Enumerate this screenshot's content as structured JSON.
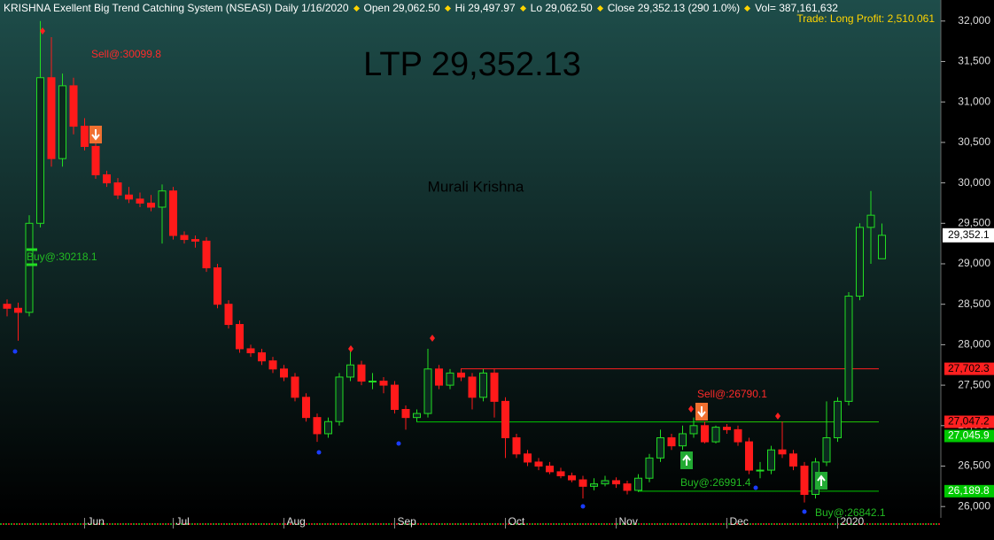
{
  "header": {
    "parts": [
      "KRISHNA Exellent Big Trend Catching System (NSEASI) Daily  1/16/2020",
      "Open 29,062.50",
      "Hi 29,497.97",
      "Lo 29,062.50",
      "Close 29,352.13 (290 1.0%)",
      "Vol= 387,161,632"
    ],
    "trade": "Trade: Long Profit: 2,510.061"
  },
  "watermark": {
    "ltp": "LTP 29,352.13",
    "author": "Murali Krishna"
  },
  "chart_data": {
    "type": "candlestick",
    "categories": [
      null,
      null,
      null,
      null,
      null,
      null,
      null,
      "Jun",
      null,
      null,
      null,
      null,
      null,
      null,
      null,
      "Jul",
      null,
      null,
      null,
      null,
      null,
      null,
      null,
      null,
      null,
      "Aug",
      null,
      null,
      null,
      null,
      null,
      null,
      null,
      null,
      null,
      "Sep",
      null,
      null,
      null,
      null,
      null,
      null,
      null,
      null,
      null,
      "Oct",
      null,
      null,
      null,
      null,
      null,
      null,
      null,
      null,
      null,
      "Nov",
      null,
      null,
      null,
      null,
      null,
      null,
      null,
      null,
      null,
      "Dec",
      null,
      null,
      null,
      null,
      null,
      null,
      null,
      null,
      null,
      "2020",
      null,
      null,
      null,
      null
    ],
    "open": [
      28500,
      28450,
      28400,
      29500,
      31300,
      30300,
      31200,
      30700,
      30450,
      30100,
      30000,
      29850,
      29800,
      29750,
      29700,
      29900,
      29350,
      29300,
      29280,
      28950,
      28500,
      28250,
      27950,
      27900,
      27800,
      27700,
      27600,
      27350,
      27100,
      26900,
      27050,
      27600,
      27750,
      27550,
      27550,
      27500,
      27200,
      27100,
      27150,
      27700,
      27500,
      27650,
      27600,
      27350,
      27650,
      27300,
      26850,
      26650,
      26550,
      26500,
      26430,
      26380,
      26330,
      26250,
      26280,
      26320,
      26280,
      26200,
      26350,
      26600,
      26850,
      26750,
      26900,
      27000,
      26800,
      26980,
      26950,
      26800,
      26450,
      26450,
      26700,
      26650,
      26500,
      26150,
      26550,
      26850,
      27300,
      28600,
      29450,
      29062.5
    ],
    "high": [
      28560,
      28520,
      29600,
      32000,
      31800,
      31350,
      31300,
      30800,
      30500,
      30150,
      30060,
      29950,
      29880,
      29850,
      29980,
      29950,
      29400,
      29350,
      29330,
      29000,
      28550,
      28300,
      28000,
      27950,
      27850,
      27750,
      27650,
      27400,
      27150,
      27100,
      27650,
      27950,
      27800,
      27650,
      27600,
      27550,
      27250,
      27200,
      27950,
      27750,
      27700,
      27700,
      27650,
      27700,
      27700,
      27350,
      26900,
      26700,
      26600,
      26550,
      26480,
      26420,
      26380,
      26350,
      26380,
      26360,
      26320,
      26400,
      26650,
      26950,
      26900,
      27000,
      27100,
      27050,
      27000,
      27020,
      27000,
      26850,
      26550,
      26750,
      27050,
      26700,
      26550,
      26600,
      27300,
      27350,
      28650,
      29500,
      29900,
      29497.97
    ],
    "low": [
      28350,
      28050,
      28350,
      29450,
      30200,
      30200,
      30600,
      30400,
      30050,
      29950,
      29800,
      29750,
      29700,
      29650,
      29250,
      29300,
      29250,
      29200,
      28900,
      28450,
      28200,
      27900,
      27850,
      27750,
      27650,
      27550,
      27300,
      27050,
      26800,
      26850,
      27000,
      27550,
      27500,
      27450,
      27400,
      27150,
      26950,
      27050,
      27100,
      27450,
      27450,
      27550,
      27200,
      27300,
      27100,
      26600,
      26600,
      26500,
      26450,
      26400,
      26350,
      26300,
      26100,
      26200,
      26250,
      26230,
      26150,
      26180,
      26300,
      26550,
      26700,
      26700,
      26850,
      26780,
      26780,
      26900,
      26750,
      26400,
      26350,
      26400,
      26600,
      26450,
      26050,
      26100,
      26500,
      26800,
      27250,
      28550,
      29000,
      29062.5
    ],
    "close": [
      28450,
      28400,
      29500,
      31300,
      30300,
      31200,
      30700,
      30450,
      30100,
      30000,
      29850,
      29800,
      29750,
      29700,
      29900,
      29350,
      29300,
      29280,
      28950,
      28500,
      28250,
      27950,
      27900,
      27800,
      27700,
      27600,
      27350,
      27100,
      26900,
      27050,
      27600,
      27750,
      27550,
      27550,
      27500,
      27200,
      27100,
      27150,
      27700,
      27500,
      27650,
      27600,
      27350,
      27650,
      27300,
      26850,
      26650,
      26550,
      26500,
      26430,
      26380,
      26330,
      26250,
      26280,
      26320,
      26280,
      26200,
      26350,
      26600,
      26850,
      26750,
      26900,
      27000,
      26800,
      26980,
      26950,
      26800,
      26450,
      26450,
      26700,
      26650,
      26500,
      26150,
      26550,
      26850,
      27300,
      28600,
      29450,
      29600,
      29352.13
    ],
    "up_color": "#22dd22",
    "down_color": "#ff1a1a",
    "ylim": [
      25860,
      32260
    ],
    "yticks": [
      {
        "value": 26000,
        "label": "26,000"
      },
      {
        "value": 26500,
        "label": "26,500"
      },
      {
        "value": 27000,
        "label": "27,000"
      },
      {
        "value": 27500,
        "label": "27,500"
      },
      {
        "value": 28000,
        "label": "28,000"
      },
      {
        "value": 28500,
        "label": "28,500"
      },
      {
        "value": 29000,
        "label": "29,000"
      },
      {
        "value": 29500,
        "label": "29,500"
      },
      {
        "value": 30000,
        "label": "30,000"
      },
      {
        "value": 30500,
        "label": "30,500"
      },
      {
        "value": 31000,
        "label": "31,000"
      },
      {
        "value": 31500,
        "label": "31,500"
      },
      {
        "value": 32000,
        "label": "32,000"
      }
    ],
    "last_price": {
      "value": 29352.1,
      "label": "29,352.1"
    },
    "levels": [
      {
        "value": 27702.3,
        "label": "27,702.3",
        "color": "#ff2020"
      },
      {
        "value": 27047.2,
        "label": "27,047.2",
        "color": "#ff2020"
      },
      {
        "value": 27045.9,
        "label": "27,045.9",
        "color": "#00c800"
      },
      {
        "value": 26189.8,
        "label": "26,189.8",
        "color": "#00c800"
      }
    ],
    "annotations": [
      {
        "text": "Sell@:30099.8",
        "color": "#ff2a2a"
      },
      {
        "text": "Buy@:30218.1",
        "color": "#22bb22"
      },
      {
        "text": "Sell@:26790.1",
        "color": "#ff2a2a"
      },
      {
        "text": "Buy@:26991.4",
        "color": "#22bb22"
      },
      {
        "text": "Buy@:26842.1",
        "color": "#22bb22"
      }
    ]
  }
}
